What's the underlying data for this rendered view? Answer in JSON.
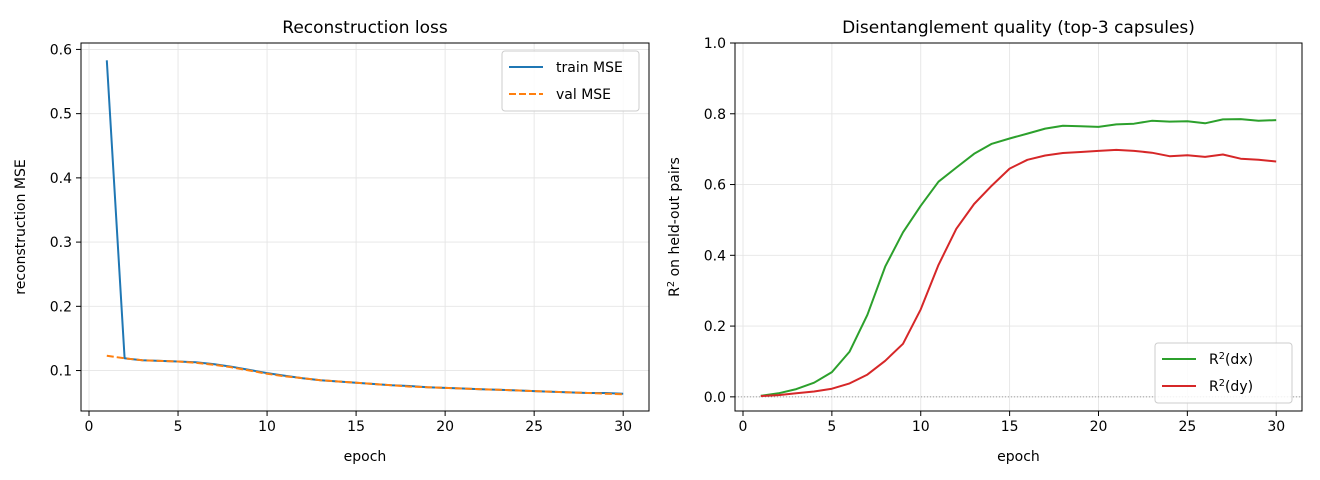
{
  "chart_data": [
    {
      "type": "line",
      "title": "Reconstruction loss",
      "xlabel": "epoch",
      "ylabel": "reconstruction MSE",
      "xlim": [
        -0.45,
        31.45
      ],
      "ylim": [
        0.037,
        0.61
      ],
      "xticks": [
        0,
        5,
        10,
        15,
        20,
        25,
        30
      ],
      "yticks": [
        0.1,
        0.2,
        0.3,
        0.4,
        0.5,
        0.6
      ],
      "ytick_format": 1,
      "grid": true,
      "legend": "upper right",
      "series": [
        {
          "name": "train MSE",
          "color": "#1f77b4",
          "dash": "solid",
          "x": [
            1,
            2,
            3,
            4,
            5,
            6,
            7,
            8,
            9,
            10,
            11,
            12,
            13,
            14,
            15,
            16,
            17,
            18,
            19,
            20,
            21,
            22,
            23,
            24,
            25,
            26,
            27,
            28,
            29,
            30
          ],
          "y": [
            0.583,
            0.119,
            0.116,
            0.115,
            0.114,
            0.113,
            0.11,
            0.106,
            0.101,
            0.096,
            0.092,
            0.088,
            0.085,
            0.083,
            0.081,
            0.079,
            0.077,
            0.076,
            0.074,
            0.073,
            0.072,
            0.071,
            0.07,
            0.069,
            0.068,
            0.067,
            0.066,
            0.065,
            0.065,
            0.064
          ]
        },
        {
          "name": "val MSE",
          "color": "#ff7f0e",
          "dash": "dashed",
          "x": [
            1,
            2,
            3,
            4,
            5,
            6,
            7,
            8,
            9,
            10,
            11,
            12,
            13,
            14,
            15,
            16,
            17,
            18,
            19,
            20,
            21,
            22,
            23,
            24,
            25,
            26,
            27,
            28,
            29,
            30
          ],
          "y": [
            0.123,
            0.119,
            0.116,
            0.115,
            0.114,
            0.112,
            0.109,
            0.105,
            0.1,
            0.095,
            0.091,
            0.088,
            0.085,
            0.083,
            0.081,
            0.079,
            0.077,
            0.075,
            0.074,
            0.073,
            0.072,
            0.071,
            0.07,
            0.069,
            0.068,
            0.067,
            0.066,
            0.065,
            0.064,
            0.063
          ]
        }
      ]
    },
    {
      "type": "line",
      "title": "Disentanglement quality (top-3 capsules)",
      "xlabel": "epoch",
      "ylabel": "R² on held-out pairs",
      "xlim": [
        -0.45,
        31.45
      ],
      "ylim": [
        -0.04,
        1.0
      ],
      "xticks": [
        0,
        5,
        10,
        15,
        20,
        25,
        30
      ],
      "yticks": [
        0.0,
        0.2,
        0.4,
        0.6,
        0.8,
        1.0
      ],
      "ytick_format": 1,
      "grid": true,
      "legend": "lower right",
      "hline": {
        "y": 0,
        "style": "dotted",
        "color": "#808080"
      },
      "series": [
        {
          "name": "R²(dx)",
          "color": "#2ca02c",
          "dash": "solid",
          "x": [
            1,
            2,
            3,
            4,
            5,
            6,
            7,
            8,
            9,
            10,
            11,
            12,
            13,
            14,
            15,
            16,
            17,
            18,
            19,
            20,
            21,
            22,
            23,
            24,
            25,
            26,
            27,
            28,
            29,
            30
          ],
          "y": [
            0.003,
            0.01,
            0.022,
            0.04,
            0.07,
            0.128,
            0.232,
            0.368,
            0.465,
            0.54,
            0.608,
            0.648,
            0.687,
            0.715,
            0.73,
            0.744,
            0.758,
            0.766,
            0.765,
            0.763,
            0.77,
            0.772,
            0.78,
            0.778,
            0.779,
            0.773,
            0.784,
            0.785,
            0.78,
            0.782
          ]
        },
        {
          "name": "R²(dy)",
          "color": "#d62728",
          "dash": "solid",
          "x": [
            1,
            2,
            3,
            4,
            5,
            6,
            7,
            8,
            9,
            10,
            11,
            12,
            13,
            14,
            15,
            16,
            17,
            18,
            19,
            20,
            21,
            22,
            23,
            24,
            25,
            26,
            27,
            28,
            29,
            30
          ],
          "y": [
            0.002,
            0.005,
            0.01,
            0.015,
            0.023,
            0.038,
            0.063,
            0.102,
            0.15,
            0.247,
            0.373,
            0.475,
            0.545,
            0.597,
            0.645,
            0.67,
            0.682,
            0.689,
            0.692,
            0.695,
            0.698,
            0.695,
            0.69,
            0.68,
            0.683,
            0.678,
            0.685,
            0.673,
            0.67,
            0.665
          ]
        }
      ]
    }
  ]
}
